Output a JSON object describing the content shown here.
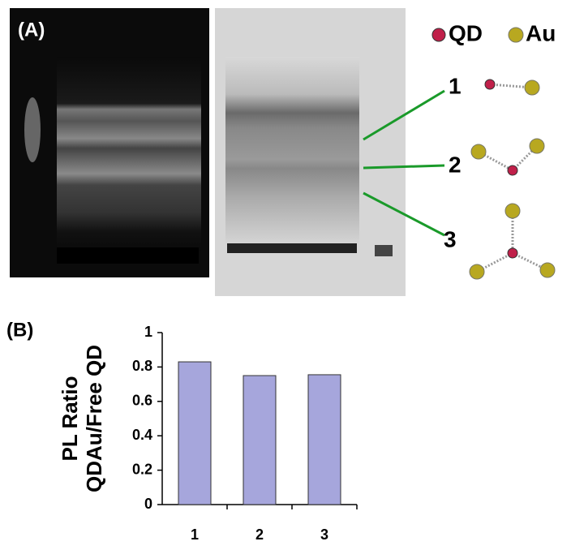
{
  "figure": {
    "panel_a": "(A)",
    "panel_b": "(B)",
    "legend": [
      "QD",
      "Au"
    ],
    "bands": [
      "1",
      "2",
      "3"
    ]
  },
  "chart_data": {
    "type": "bar",
    "ylabel": [
      "PL Ratio",
      "QDAu/Free QD"
    ],
    "categories": [
      "1",
      "2",
      "3"
    ],
    "values": [
      0.83,
      0.75,
      0.755
    ],
    "color": "#a6a6dc",
    "ylim": [
      0,
      1
    ],
    "yticks": [
      0,
      0.2,
      0.4,
      0.6,
      0.8,
      1
    ],
    "grid": false
  }
}
